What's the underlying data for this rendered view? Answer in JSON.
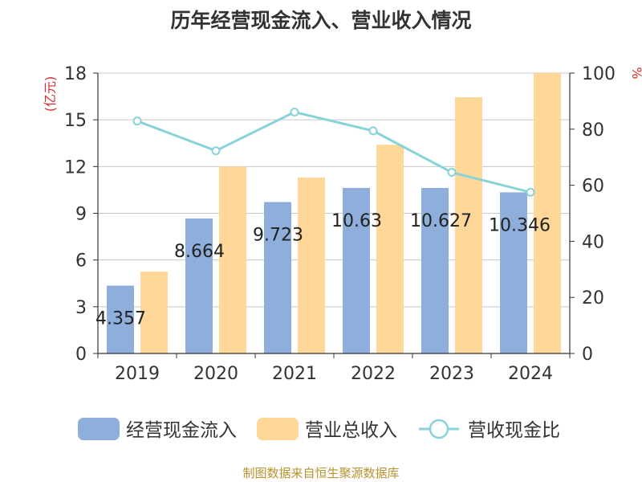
{
  "title": "历年经营现金流入、营业收入情况",
  "source": "制图数据来自恒生聚源数据库",
  "colors": {
    "cash_bar": "#8eaedb",
    "revenue_bar": "#ffd899",
    "ratio_line": "#88d3d8",
    "axis_label": "#d62b2b",
    "source_text": "#b8922e",
    "grid": "#c8c8c8"
  },
  "chart_data": {
    "type": "bar",
    "title": "历年经营现金流入、营业收入情况",
    "categories": [
      "2019",
      "2020",
      "2021",
      "2022",
      "2023",
      "2024"
    ],
    "y_left": {
      "label": "(亿元)",
      "min": 0,
      "max": 18,
      "ticks": [
        "0",
        "3",
        "6",
        "9",
        "12",
        "15",
        "18"
      ]
    },
    "y_right": {
      "label": "%",
      "min": 0,
      "max": 100,
      "ticks": [
        "0",
        "20",
        "40",
        "60",
        "80",
        "100"
      ]
    },
    "series": [
      {
        "name": "经营现金流入",
        "type": "bar",
        "axis": "left",
        "values": [
          4.357,
          8.664,
          9.723,
          10.63,
          10.627,
          10.346
        ],
        "labels": [
          "4.357",
          "8.664",
          "9.723",
          "10.63",
          "10.627",
          "10.346"
        ]
      },
      {
        "name": "营业总收入",
        "type": "bar",
        "axis": "left",
        "values": [
          5.25,
          12.0,
          11.3,
          13.4,
          16.45,
          18.0
        ]
      },
      {
        "name": "营收现金比",
        "type": "line",
        "axis": "right",
        "values": [
          82.9,
          72.3,
          86.1,
          79.4,
          64.6,
          57.5
        ]
      }
    ],
    "legend": "bottom",
    "grid": true
  }
}
